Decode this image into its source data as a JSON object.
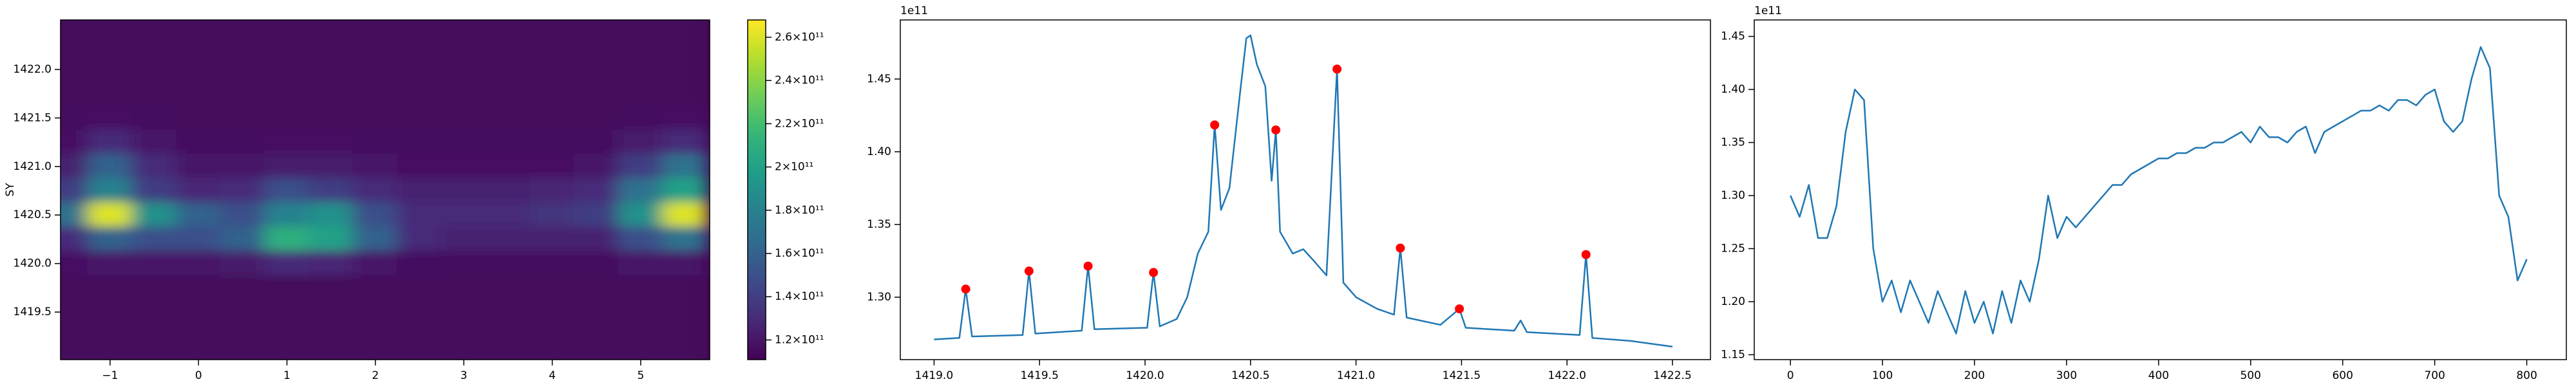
{
  "chart_data": [
    {
      "type": "heatmap",
      "ylabel": "SY",
      "colormap": "viridis",
      "xlim": [
        -1.56,
        5.78
      ],
      "xticks": [
        {
          "value": -1,
          "label": "−1"
        },
        0,
        1,
        2,
        3,
        4,
        5
      ],
      "ylim": [
        1419.01,
        1422.51
      ],
      "yticks": [
        {
          "value": 1419.5,
          "label": "1419.5"
        },
        {
          "value": 1420.0,
          "label": "1420.0"
        },
        {
          "value": 1420.5,
          "label": "1420.5"
        },
        {
          "value": 1421.0,
          "label": "1421.0"
        },
        {
          "value": 1421.5,
          "label": "1421.5"
        },
        {
          "value": 1422.0,
          "label": "1422.0"
        }
      ],
      "x": [
        -1.5,
        -1,
        -0.5,
        0,
        0.5,
        1,
        1.5,
        2,
        2.5,
        3,
        3.5,
        4,
        4.5,
        5,
        5.5
      ],
      "y": [
        1422.5,
        1422.25,
        1422.0,
        1421.75,
        1421.5,
        1421.25,
        1421.0,
        1420.75,
        1420.5,
        1420.25,
        1420.0,
        1419.75,
        1419.5,
        1419.25,
        1419.0
      ],
      "z": [
        [
          115000000000.0,
          115000000000.0,
          115000000000.0,
          115000000000.0,
          115000000000.0,
          115000000000.0,
          115000000000.0,
          115000000000.0,
          115000000000.0,
          115000000000.0,
          115000000000.0,
          115000000000.0,
          115000000000.0,
          115000000000.0,
          115000000000.0
        ],
        [
          115000000000.0,
          115000000000.0,
          115000000000.0,
          115000000000.0,
          115000000000.0,
          115000000000.0,
          115000000000.0,
          115000000000.0,
          115000000000.0,
          115000000000.0,
          115000000000.0,
          115000000000.0,
          115000000000.0,
          115000000000.0,
          115000000000.0
        ],
        [
          115000000000.0,
          115000000000.0,
          115000000000.0,
          115000000000.0,
          115000000000.0,
          115000000000.0,
          115000000000.0,
          115000000000.0,
          115000000000.0,
          115000000000.0,
          115000000000.0,
          115000000000.0,
          115000000000.0,
          115000000000.0,
          115000000000.0
        ],
        [
          115000000000.0,
          115000000000.0,
          115000000000.0,
          115000000000.0,
          115000000000.0,
          115000000000.0,
          115000000000.0,
          115000000000.0,
          115000000000.0,
          115000000000.0,
          115000000000.0,
          115000000000.0,
          115000000000.0,
          115000000000.0,
          115000000000.0
        ],
        [
          116000000000.0,
          118000000000.0,
          116000000000.0,
          115000000000.0,
          115000000000.0,
          115000000000.0,
          115000000000.0,
          115000000000.0,
          115000000000.0,
          115000000000.0,
          115000000000.0,
          115000000000.0,
          115000000000.0,
          116000000000.0,
          118000000000.0
        ],
        [
          118000000000.0,
          130000000000.0,
          120000000000.0,
          117000000000.0,
          117000000000.0,
          118000000000.0,
          118000000000.0,
          117000000000.0,
          116000000000.0,
          116000000000.0,
          116000000000.0,
          116000000000.0,
          117000000000.0,
          122000000000.0,
          130000000000.0
        ],
        [
          125000000000.0,
          160000000000.0,
          130000000000.0,
          120000000000.0,
          120000000000.0,
          122000000000.0,
          122000000000.0,
          120000000000.0,
          118000000000.0,
          118000000000.0,
          118000000000.0,
          118000000000.0,
          120000000000.0,
          140000000000.0,
          170000000000.0
        ],
        [
          140000000000.0,
          180000000000.0,
          140000000000.0,
          128000000000.0,
          130000000000.0,
          150000000000.0,
          140000000000.0,
          130000000000.0,
          125000000000.0,
          125000000000.0,
          125000000000.0,
          127000000000.0,
          130000000000.0,
          170000000000.0,
          200000000000.0
        ],
        [
          170000000000.0,
          260000000000.0,
          190000000000.0,
          160000000000.0,
          150000000000.0,
          180000000000.0,
          190000000000.0,
          150000000000.0,
          130000000000.0,
          130000000000.0,
          130000000000.0,
          135000000000.0,
          140000000000.0,
          190000000000.0,
          260000000000.0
        ],
        [
          130000000000.0,
          160000000000.0,
          150000000000.0,
          150000000000.0,
          160000000000.0,
          210000000000.0,
          200000000000.0,
          160000000000.0,
          130000000000.0,
          125000000000.0,
          125000000000.0,
          125000000000.0,
          125000000000.0,
          150000000000.0,
          170000000000.0
        ],
        [
          118000000000.0,
          120000000000.0,
          120000000000.0,
          120000000000.0,
          122000000000.0,
          130000000000.0,
          128000000000.0,
          120000000000.0,
          117000000000.0,
          116000000000.0,
          116000000000.0,
          116000000000.0,
          116000000000.0,
          120000000000.0,
          120000000000.0
        ],
        [
          115000000000.0,
          115000000000.0,
          115000000000.0,
          115000000000.0,
          115000000000.0,
          115000000000.0,
          115000000000.0,
          115000000000.0,
          115000000000.0,
          115000000000.0,
          115000000000.0,
          115000000000.0,
          115000000000.0,
          115000000000.0,
          115000000000.0
        ],
        [
          115000000000.0,
          115000000000.0,
          115000000000.0,
          115000000000.0,
          115000000000.0,
          115000000000.0,
          115000000000.0,
          115000000000.0,
          115000000000.0,
          115000000000.0,
          115000000000.0,
          115000000000.0,
          115000000000.0,
          115000000000.0,
          115000000000.0
        ],
        [
          115000000000.0,
          115000000000.0,
          115000000000.0,
          115000000000.0,
          115000000000.0,
          115000000000.0,
          115000000000.0,
          115000000000.0,
          115000000000.0,
          115000000000.0,
          115000000000.0,
          115000000000.0,
          115000000000.0,
          115000000000.0,
          115000000000.0
        ],
        [
          115000000000.0,
          115000000000.0,
          115000000000.0,
          115000000000.0,
          115000000000.0,
          115000000000.0,
          115000000000.0,
          115000000000.0,
          115000000000.0,
          115000000000.0,
          115000000000.0,
          115000000000.0,
          115000000000.0,
          115000000000.0,
          115000000000.0
        ]
      ],
      "clim": [
        110900000000.0,
        268000000000.0
      ],
      "cticks": [
        {
          "value": 120000000000.0,
          "label": "1.2×10¹¹"
        },
        {
          "value": 140000000000.0,
          "label": "1.4×10¹¹"
        },
        {
          "value": 160000000000.0,
          "label": "1.6×10¹¹"
        },
        {
          "value": 180000000000.0,
          "label": "1.8×10¹¹"
        },
        {
          "value": 200000000000.0,
          "label": "2×10¹¹"
        },
        {
          "value": 220000000000.0,
          "label": "2.2×10¹¹"
        },
        {
          "value": 240000000000.0,
          "label": "2.4×10¹¹"
        },
        {
          "value": 260000000000.0,
          "label": "2.6×10¹¹"
        }
      ]
    },
    {
      "type": "line",
      "y_offset_label": "1e11",
      "xlim": [
        1418.84,
        1422.68
      ],
      "xticks": [
        {
          "value": 1419.0,
          "label": "1419.0"
        },
        {
          "value": 1419.5,
          "label": "1419.5"
        },
        {
          "value": 1420.0,
          "label": "1420.0"
        },
        {
          "value": 1420.5,
          "label": "1420.5"
        },
        {
          "value": 1421.0,
          "label": "1421.0"
        },
        {
          "value": 1421.5,
          "label": "1421.5"
        },
        {
          "value": 1422.0,
          "label": "1422.0"
        },
        {
          "value": 1422.5,
          "label": "1422.5"
        }
      ],
      "ylim": [
        1.2571,
        1.4906
      ],
      "yticks": [
        {
          "value": 1.3,
          "label": "1.30"
        },
        {
          "value": 1.35,
          "label": "1.35"
        },
        {
          "value": 1.4,
          "label": "1.40"
        },
        {
          "value": 1.45,
          "label": "1.45"
        }
      ],
      "series": [
        {
          "type": "line",
          "color": "#1f77b4",
          "x": [
            1419.0,
            1419.12,
            1419.15,
            1419.18,
            1419.42,
            1419.45,
            1419.48,
            1419.7,
            1419.73,
            1419.76,
            1420.01,
            1420.04,
            1420.07,
            1420.15,
            1420.2,
            1420.25,
            1420.3,
            1420.33,
            1420.36,
            1420.4,
            1420.45,
            1420.48,
            1420.5,
            1420.53,
            1420.57,
            1420.6,
            1420.62,
            1420.64,
            1420.7,
            1420.75,
            1420.8,
            1420.86,
            1420.91,
            1420.94,
            1421.0,
            1421.1,
            1421.18,
            1421.21,
            1421.24,
            1421.4,
            1421.49,
            1421.52,
            1421.75,
            1421.78,
            1421.81,
            1422.06,
            1422.09,
            1422.12,
            1422.3,
            1422.5
          ],
          "values": [
            1.271,
            1.272,
            1.3056,
            1.273,
            1.274,
            1.318,
            1.275,
            1.277,
            1.3214,
            1.278,
            1.279,
            1.317,
            1.28,
            1.285,
            1.3,
            1.33,
            1.345,
            1.4184,
            1.36,
            1.375,
            1.44,
            1.478,
            1.48,
            1.46,
            1.445,
            1.38,
            1.415,
            1.345,
            1.33,
            1.333,
            1.325,
            1.315,
            1.4568,
            1.31,
            1.3,
            1.292,
            1.288,
            1.3338,
            1.286,
            1.281,
            1.292,
            1.279,
            1.277,
            1.284,
            1.276,
            1.274,
            1.3293,
            1.272,
            1.27,
            1.266
          ]
        },
        {
          "type": "scatter",
          "color": "#ff0000",
          "x": [
            1419.15,
            1419.45,
            1419.73,
            1420.04,
            1420.33,
            1420.62,
            1420.91,
            1421.21,
            1421.49,
            1422.09
          ],
          "values": [
            1.3056,
            1.318,
            1.3214,
            1.317,
            1.4184,
            1.415,
            1.4568,
            1.3338,
            1.292,
            1.3293
          ]
        }
      ]
    },
    {
      "type": "line",
      "y_offset_label": "1e11",
      "xlim": [
        -39.3,
        843
      ],
      "xticks": [
        0,
        100,
        200,
        300,
        400,
        500,
        600,
        700,
        800
      ],
      "ylim": [
        1.1454,
        1.4655
      ],
      "yticks": [
        {
          "value": 1.15,
          "label": "1.15"
        },
        {
          "value": 1.2,
          "label": "1.20"
        },
        {
          "value": 1.25,
          "label": "1.25"
        },
        {
          "value": 1.3,
          "label": "1.30"
        },
        {
          "value": 1.35,
          "label": "1.35"
        },
        {
          "value": 1.4,
          "label": "1.40"
        },
        {
          "value": 1.45,
          "label": "1.45"
        }
      ],
      "series": [
        {
          "type": "line",
          "color": "#1f77b4",
          "x": [
            0,
            10,
            20,
            30,
            40,
            50,
            60,
            70,
            80,
            90,
            100,
            110,
            120,
            130,
            140,
            150,
            160,
            170,
            180,
            190,
            200,
            210,
            220,
            230,
            240,
            250,
            260,
            270,
            280,
            290,
            300,
            310,
            320,
            330,
            340,
            350,
            360,
            370,
            380,
            390,
            400,
            410,
            420,
            430,
            440,
            450,
            460,
            470,
            480,
            490,
            500,
            510,
            520,
            530,
            540,
            550,
            560,
            570,
            580,
            590,
            600,
            610,
            620,
            630,
            640,
            650,
            660,
            670,
            680,
            690,
            700,
            710,
            720,
            730,
            740,
            750,
            760,
            770,
            780,
            790,
            800
          ],
          "values": [
            1.3,
            1.28,
            1.31,
            1.26,
            1.26,
            1.29,
            1.36,
            1.4,
            1.39,
            1.25,
            1.2,
            1.22,
            1.19,
            1.22,
            1.2,
            1.18,
            1.21,
            1.19,
            1.17,
            1.21,
            1.18,
            1.2,
            1.17,
            1.21,
            1.18,
            1.22,
            1.2,
            1.24,
            1.3,
            1.26,
            1.28,
            1.27,
            1.28,
            1.29,
            1.3,
            1.31,
            1.31,
            1.32,
            1.325,
            1.33,
            1.335,
            1.335,
            1.34,
            1.34,
            1.345,
            1.345,
            1.35,
            1.35,
            1.355,
            1.36,
            1.35,
            1.365,
            1.355,
            1.355,
            1.35,
            1.36,
            1.365,
            1.34,
            1.36,
            1.365,
            1.37,
            1.375,
            1.38,
            1.38,
            1.385,
            1.38,
            1.39,
            1.39,
            1.385,
            1.395,
            1.4,
            1.37,
            1.36,
            1.37,
            1.41,
            1.44,
            1.42,
            1.3,
            1.28,
            1.22,
            1.24
          ]
        }
      ]
    }
  ]
}
